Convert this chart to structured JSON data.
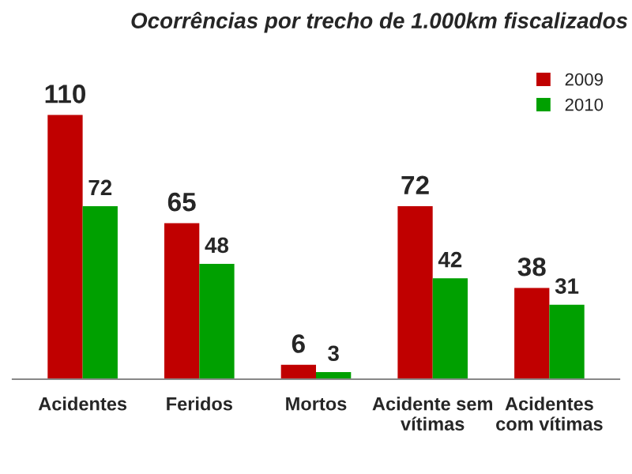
{
  "chart_data": {
    "type": "bar",
    "title": "Ocorrências por trecho de 1.000km fiscalizados",
    "categories": [
      "Acidentes",
      "Feridos",
      "Mortos",
      "Acidente sem vítimas",
      "Acidentes com vítimas"
    ],
    "series": [
      {
        "name": "2009",
        "color": "#c00000",
        "values": [
          110,
          65,
          6,
          72,
          38
        ]
      },
      {
        "name": "2010",
        "color": "#00a000",
        "values": [
          72,
          48,
          3,
          42,
          31
        ]
      }
    ],
    "data_labels": true,
    "legend": "top right",
    "grid": false
  }
}
